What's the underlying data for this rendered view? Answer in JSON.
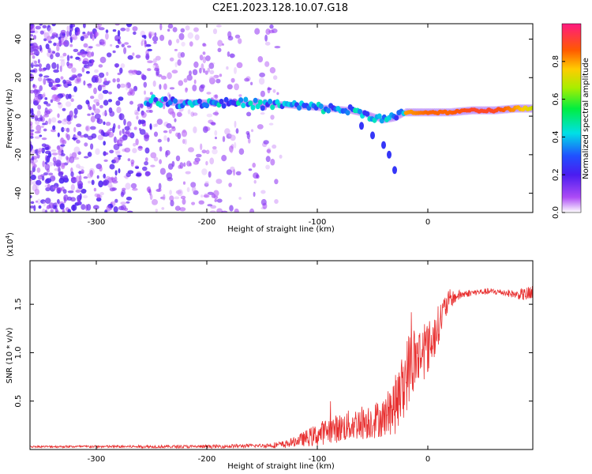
{
  "title": "C2E1.2023.128.10.07.G18",
  "chart_data": [
    {
      "type": "heatmap",
      "xlabel": "Height of straight line (km)",
      "ylabel": "Frequency (Hz)",
      "xlim": [
        -360,
        95
      ],
      "ylim": [
        -50,
        48
      ],
      "xticks": [
        -300,
        -200,
        -100,
        0
      ],
      "xtick_labels": [
        "-300",
        "-200",
        "-100",
        "0"
      ],
      "yticks": [
        40,
        20,
        0,
        -20,
        -40
      ],
      "ytick_labels": [
        "40",
        "20",
        "0",
        "-20",
        "-40"
      ],
      "colorbar": {
        "label": "Normalized spectral amplitude",
        "range": [
          0,
          1
        ],
        "ticks": [
          0.0,
          0.2,
          0.4,
          0.6,
          0.8
        ],
        "tick_labels": [
          "0.0",
          "0.2",
          "0.4",
          "0.6",
          "0.8"
        ],
        "colormap": "rainbow"
      },
      "ridge": [
        {
          "x": -250,
          "y": 8,
          "a": 0.3
        },
        {
          "x": -230,
          "y": 7,
          "a": 0.35
        },
        {
          "x": -210,
          "y": 7,
          "a": 0.4
        },
        {
          "x": -190,
          "y": 7,
          "a": 0.4
        },
        {
          "x": -170,
          "y": 7,
          "a": 0.4
        },
        {
          "x": -150,
          "y": 6,
          "a": 0.4
        },
        {
          "x": -130,
          "y": 6,
          "a": 0.4
        },
        {
          "x": -110,
          "y": 5,
          "a": 0.4
        },
        {
          "x": -90,
          "y": 4,
          "a": 0.35
        },
        {
          "x": -70,
          "y": 3,
          "a": 0.4
        },
        {
          "x": -55,
          "y": 1,
          "a": 0.35
        },
        {
          "x": -40,
          "y": -2,
          "a": 0.35
        },
        {
          "x": -30,
          "y": -1,
          "a": 0.35
        },
        {
          "x": -20,
          "y": 2,
          "a": 0.8
        },
        {
          "x": 0,
          "y": 2,
          "a": 0.85
        },
        {
          "x": 20,
          "y": 2,
          "a": 0.85
        },
        {
          "x": 40,
          "y": 3,
          "a": 0.9
        },
        {
          "x": 60,
          "y": 3,
          "a": 0.9
        },
        {
          "x": 80,
          "y": 4,
          "a": 0.8
        },
        {
          "x": 95,
          "y": 4,
          "a": 0.7
        }
      ],
      "tail": [
        {
          "x": -60,
          "y": -5
        },
        {
          "x": -50,
          "y": -10
        },
        {
          "x": -40,
          "y": -15
        },
        {
          "x": -35,
          "y": -20
        },
        {
          "x": -30,
          "y": -28
        }
      ]
    },
    {
      "type": "line",
      "xlabel": "Height of straight line (km)",
      "ylabel": "SNR (10 * v/v)",
      "scale_note": "(x10",
      "scale_exp": "4",
      "scale_close": ")",
      "xlim": [
        -360,
        95
      ],
      "ylim": [
        0,
        1.95
      ],
      "xticks": [
        -300,
        -200,
        -100,
        0
      ],
      "xtick_labels": [
        "-300",
        "-200",
        "-100",
        "0"
      ],
      "yticks": [
        0.5,
        1.0,
        1.5
      ],
      "ytick_labels": [
        "0.5",
        "1.0",
        "1.5"
      ],
      "line_color": "#e83030",
      "series": [
        {
          "trend_x": [
            -360,
            -300,
            -200,
            -150,
            -130,
            -115,
            -100,
            -90,
            -80,
            -70,
            -60,
            -50,
            -40,
            -30,
            -25,
            -20,
            -15,
            -10,
            -5,
            0,
            5,
            10,
            15,
            20,
            30,
            40,
            50,
            60,
            70,
            80,
            95
          ],
          "trend_y": [
            0.03,
            0.03,
            0.03,
            0.04,
            0.05,
            0.1,
            0.15,
            0.2,
            0.22,
            0.25,
            0.28,
            0.3,
            0.33,
            0.45,
            0.55,
            0.75,
            0.9,
            0.95,
            1.0,
            1.05,
            1.15,
            1.3,
            1.45,
            1.55,
            1.6,
            1.62,
            1.63,
            1.63,
            1.62,
            1.6,
            1.6
          ],
          "noise_x": [
            -360,
            -150,
            -120,
            -100,
            -60,
            -40,
            -25,
            -15,
            -5,
            5,
            15,
            25,
            40,
            80,
            95
          ],
          "noise_amp": [
            0.01,
            0.02,
            0.05,
            0.12,
            0.18,
            0.2,
            0.35,
            0.4,
            0.3,
            0.25,
            0.15,
            0.06,
            0.03,
            0.04,
            0.1
          ]
        }
      ]
    }
  ]
}
